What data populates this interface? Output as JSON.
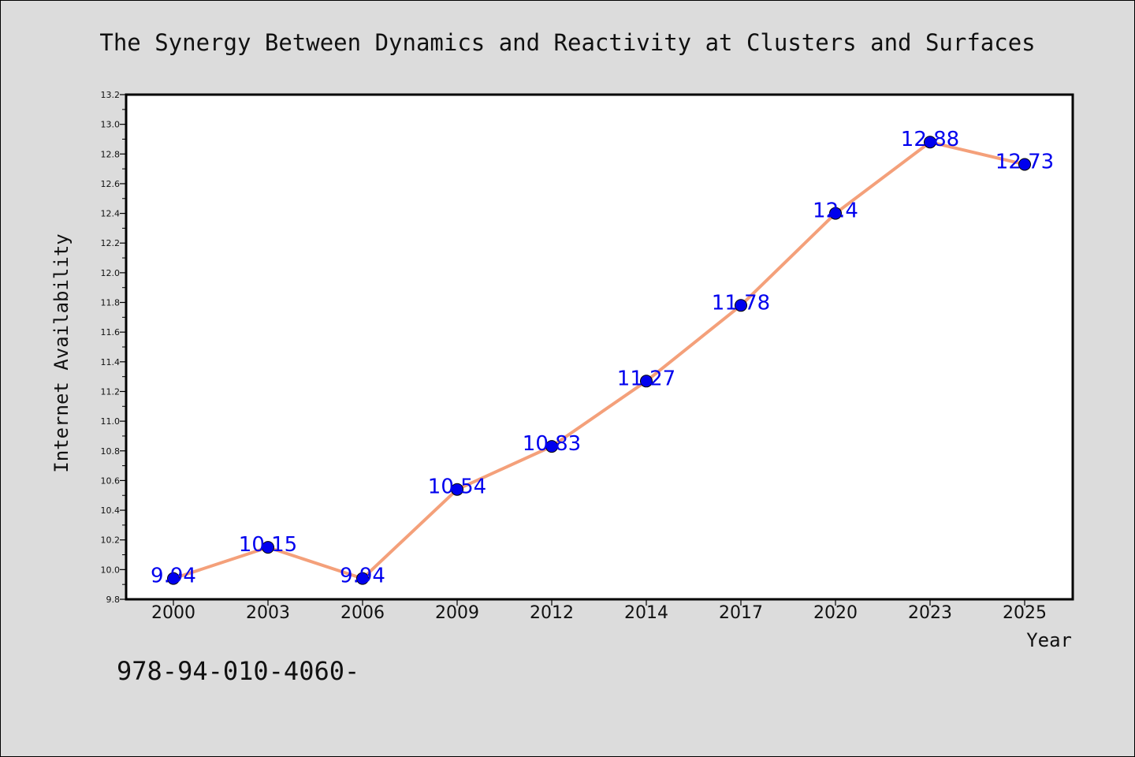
{
  "chart_data": {
    "type": "line",
    "title": "The Synergy Between Dynamics and Reactivity at Clusters and Surfaces",
    "xlabel": "Year",
    "ylabel": "Internet Availability",
    "categories": [
      "2000",
      "2003",
      "2006",
      "2009",
      "2012",
      "2014",
      "2017",
      "2020",
      "2023",
      "2025"
    ],
    "values": [
      9.94,
      10.15,
      9.94,
      10.54,
      10.83,
      11.27,
      11.78,
      12.4,
      12.88,
      12.73
    ],
    "data_labels": [
      "9.94",
      "10.15",
      "9.94",
      "10.54",
      "10.83",
      "11.27",
      "11.78",
      "12.4",
      "12.88",
      "12.73"
    ],
    "ylim": [
      9.8,
      13.2
    ],
    "yticks": [
      "9.8",
      "10.0",
      "10.2",
      "10.4",
      "10.6",
      "10.8",
      "11.0",
      "11.2",
      "11.4",
      "11.6",
      "11.8",
      "12.0",
      "12.2",
      "12.4",
      "12.6",
      "12.8",
      "13.0",
      "13.2"
    ],
    "grid": false,
    "line_color": "#f4a07a",
    "marker_color": "#0000ee",
    "label_color": "#0000ee"
  },
  "caption": "978-94-010-4060-"
}
